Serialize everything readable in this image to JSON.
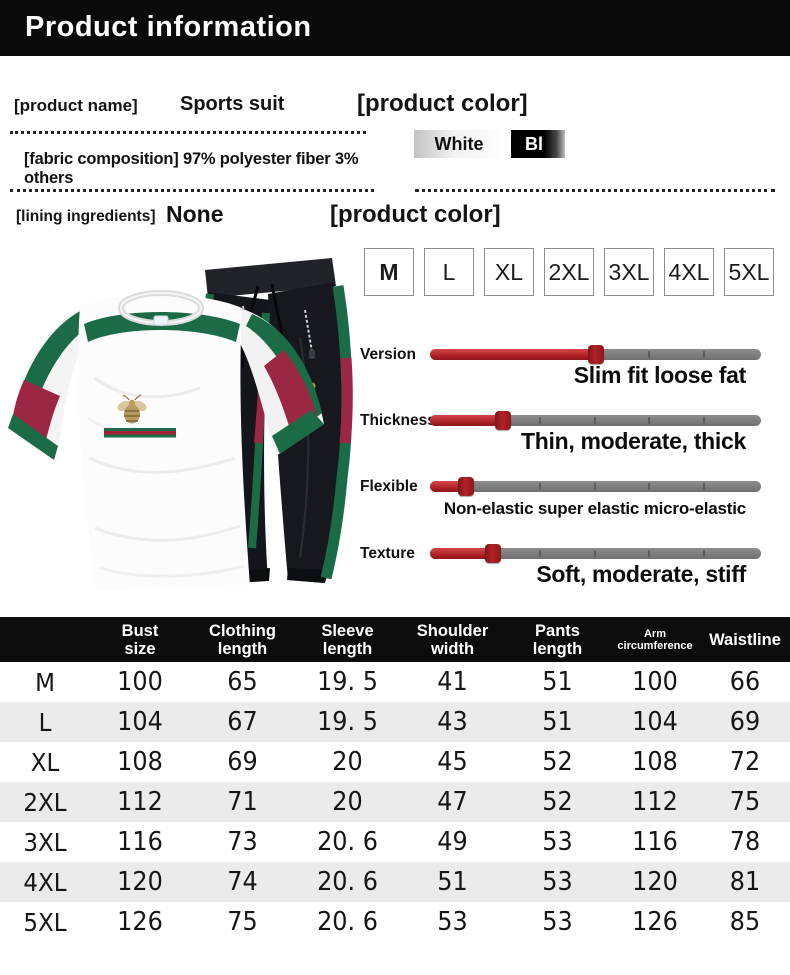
{
  "colors": {
    "header_black": "#0a0a0a",
    "slider_red": "#a81d22",
    "slider_track_gray": "#7b7b7b",
    "stripe_green": "#1b6b47",
    "stripe_red": "#9c2743",
    "row_alt_gray": "#ebebeb",
    "swatch_black": "#000000"
  },
  "header": {
    "title": "Product information"
  },
  "info": {
    "name_label": "[product name]",
    "name_value": "Sports suit",
    "color_title": "[product color]",
    "color_options": [
      {
        "label": "White"
      },
      {
        "label": "Bl"
      }
    ],
    "fabric_line": "[fabric composition] 97% polyester fiber 3% others",
    "lining_label": "[lining ingredients]",
    "lining_value": "None",
    "size_title": "[product color]",
    "size_options": [
      "M",
      "L",
      "XL",
      "2XL",
      "3XL",
      "4XL",
      "5XL"
    ]
  },
  "attributes": [
    {
      "label": "Version",
      "caption": "Slim fit loose fat",
      "fill_pct": 50
    },
    {
      "label": "Thickness",
      "caption": "Thin, moderate, thick",
      "fill_pct": 22
    },
    {
      "label": "Flexible",
      "caption": "Non-elastic super elastic micro-elastic",
      "fill_pct": 11
    },
    {
      "label": "Texture",
      "caption": "Soft, moderate, stiff",
      "fill_pct": 19
    }
  ],
  "size_table": {
    "columns": [
      [
        ""
      ],
      [
        "Bust",
        "size"
      ],
      [
        "Clothing",
        "length"
      ],
      [
        "Sleeve",
        "length"
      ],
      [
        "Shoulder",
        "width"
      ],
      [
        "Pants",
        "length"
      ],
      [
        "Arm",
        "circumference"
      ],
      [
        "Waistline"
      ]
    ],
    "rows": [
      {
        "size": "M",
        "values": [
          "100",
          "65",
          "19. 5",
          "41",
          "51",
          "100",
          "66"
        ]
      },
      {
        "size": "L",
        "values": [
          "104",
          "67",
          "19. 5",
          "43",
          "51",
          "104",
          "69"
        ]
      },
      {
        "size": "XL",
        "values": [
          "108",
          "69",
          "20",
          "45",
          "52",
          "108",
          "72"
        ]
      },
      {
        "size": "2XL",
        "values": [
          "112",
          "71",
          "20",
          "47",
          "52",
          "112",
          "75"
        ]
      },
      {
        "size": "3XL",
        "values": [
          "116",
          "73",
          "20. 6",
          "49",
          "53",
          "116",
          "78"
        ]
      },
      {
        "size": "4XL",
        "values": [
          "120",
          "74",
          "20. 6",
          "51",
          "53",
          "120",
          "81"
        ]
      },
      {
        "size": "5XL",
        "values": [
          "126",
          "75",
          "20. 6",
          "53",
          "53",
          "126",
          "85"
        ]
      }
    ]
  }
}
